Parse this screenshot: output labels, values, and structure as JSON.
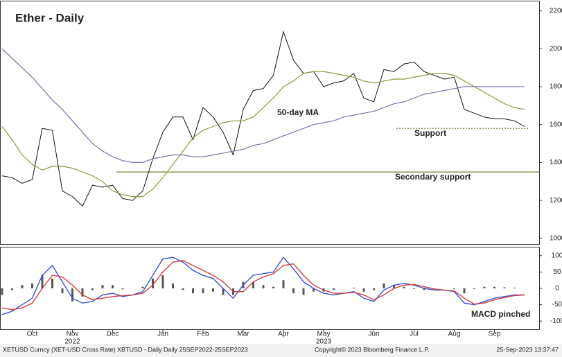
{
  "chart_data": [
    {
      "type": "line",
      "title": "Ether - Daily",
      "ylim": [
        970,
        2250
      ],
      "yticks": [
        1000,
        1200,
        1400,
        1600,
        1800,
        2000,
        2200
      ],
      "series": [
        {
          "color": "#111111",
          "values": [
            1330,
            1320,
            1290,
            1310,
            1580,
            1570,
            1250,
            1220,
            1170,
            1280,
            1270,
            1280,
            1210,
            1200,
            1250,
            1420,
            1560,
            1640,
            1640,
            1520,
            1690,
            1640,
            1560,
            1440,
            1680,
            1780,
            1790,
            1860,
            2090,
            1940,
            1870,
            1880,
            1800,
            1820,
            1830,
            1870,
            1740,
            1720,
            1890,
            1880,
            1920,
            1930,
            1880,
            1860,
            1840,
            1850,
            1680,
            1660,
            1640,
            1630,
            1630,
            1620,
            1590
          ]
        },
        {
          "color": "#8a9a3a",
          "values": [
            1590,
            1520,
            1440,
            1390,
            1360,
            1380,
            1380,
            1370,
            1350,
            1330,
            1300,
            1250,
            1230,
            1220,
            1220,
            1260,
            1320,
            1390,
            1460,
            1530,
            1570,
            1590,
            1610,
            1620,
            1620,
            1640,
            1690,
            1740,
            1800,
            1830,
            1870,
            1880,
            1880,
            1870,
            1860,
            1850,
            1830,
            1820,
            1830,
            1840,
            1840,
            1850,
            1860,
            1870,
            1870,
            1860,
            1830,
            1800,
            1770,
            1740,
            1710,
            1690,
            1680
          ]
        },
        {
          "color": "#7b6fa8",
          "values": [
            2000,
            1950,
            1900,
            1850,
            1790,
            1730,
            1680,
            1620,
            1560,
            1500,
            1460,
            1430,
            1410,
            1400,
            1400,
            1420,
            1430,
            1440,
            1440,
            1430,
            1430,
            1440,
            1450,
            1460,
            1470,
            1490,
            1500,
            1520,
            1540,
            1560,
            1580,
            1600,
            1610,
            1620,
            1640,
            1650,
            1660,
            1670,
            1690,
            1710,
            1720,
            1740,
            1760,
            1770,
            1780,
            1790,
            1800,
            1800,
            1800,
            1800,
            1800,
            1800,
            1800
          ]
        }
      ],
      "support_levels": [
        1580,
        1350
      ],
      "annotations": [
        "50-day MA",
        "Support",
        "Secondary support"
      ]
    },
    {
      "type": "macd",
      "ylim": [
        -125,
        125
      ],
      "yticks": [
        -100,
        -50,
        0,
        50,
        100
      ],
      "categories": [
        null,
        null,
        null,
        "Oct",
        null,
        null,
        null,
        "Nov",
        null,
        null,
        null,
        "Dec",
        null,
        null,
        null,
        null,
        "Jan",
        null,
        null,
        null,
        "Feb",
        null,
        null,
        null,
        "Mar",
        null,
        null,
        null,
        "Apr",
        null,
        null,
        null,
        "May",
        null,
        null,
        null,
        null,
        "Jun",
        null,
        null,
        null,
        "Jul",
        null,
        null,
        null,
        "Aug",
        null,
        null,
        null,
        "Sep",
        null,
        null,
        null
      ],
      "year_categories": [
        null,
        null,
        null,
        null,
        null,
        null,
        null,
        "2022",
        null,
        null,
        null,
        null,
        null,
        null,
        null,
        null,
        null,
        null,
        null,
        null,
        null,
        null,
        null,
        null,
        null,
        null,
        null,
        null,
        null,
        null,
        null,
        null,
        "2023",
        null,
        null,
        null,
        null,
        null,
        null,
        null,
        null,
        null,
        null,
        null,
        null,
        null,
        null,
        null,
        null,
        null,
        null,
        null,
        null
      ],
      "series": [
        {
          "color": "#3a4fd8",
          "values": [
            -80,
            -70,
            -50,
            -30,
            40,
            70,
            20,
            -30,
            -45,
            -40,
            -20,
            -15,
            -25,
            -20,
            -10,
            40,
            90,
            95,
            80,
            55,
            40,
            30,
            0,
            -30,
            10,
            40,
            45,
            50,
            95,
            60,
            20,
            0,
            -15,
            -20,
            -15,
            -10,
            -30,
            -40,
            -5,
            10,
            15,
            10,
            0,
            -5,
            -5,
            -10,
            -45,
            -50,
            -40,
            -30,
            -25,
            -20,
            -20
          ]
        },
        {
          "color": "#d43c3c",
          "values": [
            -60,
            -65,
            -60,
            -45,
            0,
            40,
            35,
            10,
            -20,
            -35,
            -30,
            -25,
            -22,
            -20,
            -15,
            10,
            50,
            80,
            85,
            70,
            55,
            40,
            20,
            -10,
            -10,
            20,
            35,
            45,
            70,
            75,
            40,
            10,
            -5,
            -15,
            -15,
            -12,
            -20,
            -35,
            -20,
            0,
            10,
            12,
            5,
            -2,
            -5,
            -8,
            -30,
            -48,
            -45,
            -35,
            -28,
            -22,
            -20
          ]
        }
      ],
      "histogram": {
        "color": "#555555",
        "values": [
          -20,
          -5,
          10,
          15,
          40,
          30,
          -15,
          -40,
          -25,
          -5,
          10,
          10,
          -3,
          0,
          5,
          30,
          40,
          15,
          -5,
          -15,
          -15,
          -10,
          -20,
          -20,
          20,
          20,
          10,
          5,
          25,
          -15,
          -20,
          -10,
          -10,
          -5,
          0,
          2,
          -10,
          -5,
          15,
          10,
          5,
          -2,
          -5,
          -3,
          0,
          -2,
          -15,
          -2,
          5,
          5,
          3,
          2,
          0
        ]
      },
      "annotations": [
        "MACD pinched"
      ]
    }
  ],
  "footer": {
    "left": "XETUSD Curncy (XET-USD Cross Rate) XBTUSD - Daily  Daily 25SEP2022-25SEP2023",
    "center": "Copyright© 2023 Bloomberg Finance L.P.",
    "right": "25-Sep-2023 13:37:47"
  }
}
